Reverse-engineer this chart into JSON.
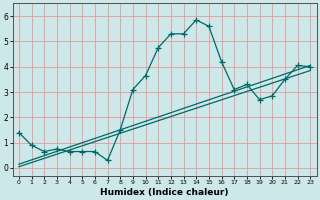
{
  "title": "",
  "xlabel": "Humidex (Indice chaleur)",
  "bg_color": "#cce8e8",
  "grid_color": "#e89898",
  "line_color": "#006868",
  "xlim": [
    -0.5,
    23.5
  ],
  "ylim": [
    -0.3,
    6.5
  ],
  "xticks": [
    0,
    1,
    2,
    3,
    4,
    5,
    6,
    7,
    8,
    9,
    10,
    11,
    12,
    13,
    14,
    15,
    16,
    17,
    18,
    19,
    20,
    21,
    22,
    23
  ],
  "yticks": [
    0,
    1,
    2,
    3,
    4,
    5,
    6
  ],
  "main_x": [
    0,
    1,
    2,
    3,
    4,
    5,
    6,
    7,
    8,
    9,
    10,
    11,
    12,
    13,
    14,
    15,
    16,
    17,
    18,
    19,
    20,
    21,
    22,
    23
  ],
  "main_y": [
    1.4,
    0.9,
    0.65,
    0.75,
    0.65,
    0.65,
    0.65,
    0.3,
    1.5,
    3.1,
    3.65,
    4.75,
    5.3,
    5.3,
    5.85,
    5.6,
    4.2,
    3.1,
    3.3,
    2.7,
    2.85,
    3.5,
    4.05,
    4.0
  ],
  "line2_x": [
    0,
    23
  ],
  "line2_y": [
    0.05,
    3.85
  ],
  "line3_x": [
    0,
    23
  ],
  "line3_y": [
    0.15,
    4.05
  ]
}
